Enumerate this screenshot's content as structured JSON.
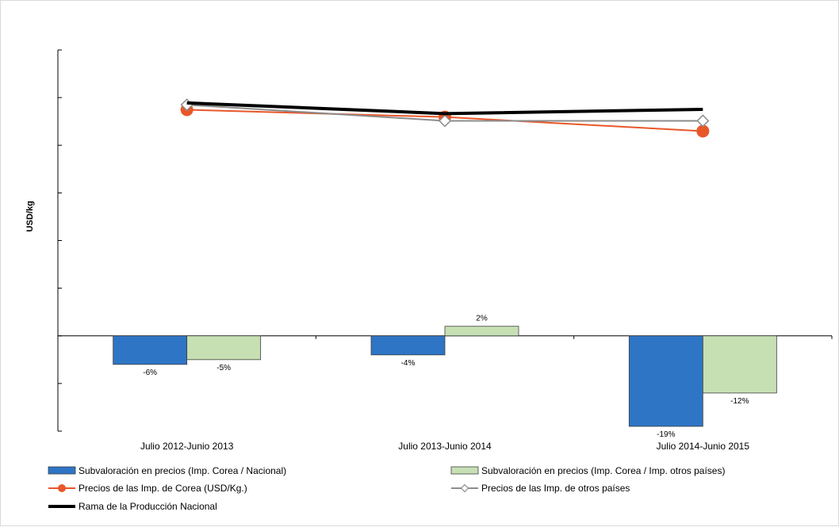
{
  "chart_data": {
    "type": "bar",
    "title": "",
    "xlabel": "",
    "ylabel": "USD/kg",
    "categories": [
      "Julio 2012-Junio 2013",
      "Julio 2013-Junio 2014",
      "Julio 2014-Junio 2015"
    ],
    "bar_ylim": [
      -0.2,
      0.6
    ],
    "bar_series": [
      {
        "name": "Subvaloración en precios (Imp. Corea / Nacional)",
        "color": "#2E75C6",
        "values": [
          -0.06,
          -0.04,
          -0.19
        ],
        "labels": [
          "-6%",
          "-4%",
          "-19%"
        ]
      },
      {
        "name": "Subvaloración en precios (Imp. Corea / Imp. otros países)",
        "color": "#C6E0B4",
        "values": [
          -0.05,
          0.02,
          -0.12
        ],
        "labels": [
          "-5%",
          "2%",
          "-12%"
        ]
      }
    ],
    "line_ylim": [
      0,
      1
    ],
    "line_series": [
      {
        "name": "Precios de las Imp. de Corea (USD/Kg.)",
        "color": "#E8572A",
        "marker": "circle",
        "values": [
          0.843,
          0.824,
          0.787
        ]
      },
      {
        "name": "Precios de las Imp. de otros países",
        "color": "#8C8C8C",
        "marker": "diamond",
        "values": [
          0.856,
          0.814,
          0.814
        ]
      },
      {
        "name": "Rama de la Producción Nacional",
        "color": "#000000",
        "marker": "none",
        "values": [
          0.861,
          0.833,
          0.844
        ]
      }
    ],
    "grid": false,
    "legend_position": "bottom"
  }
}
